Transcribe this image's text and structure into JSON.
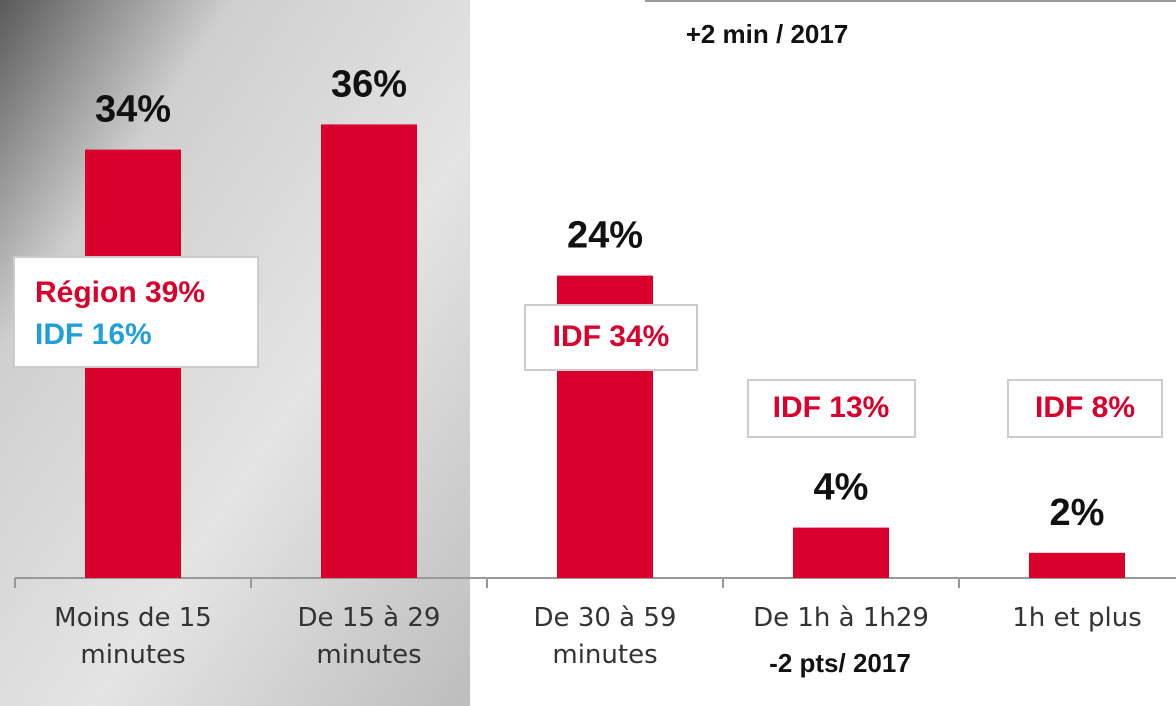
{
  "chart_data": {
    "type": "bar",
    "categories": [
      "Moins de 15 minutes",
      "De 15 à 29 minutes",
      "De 30 à 59 minutes",
      "De 1h à 1h29",
      "1h et plus"
    ],
    "values": [
      34,
      36,
      24,
      4,
      2
    ],
    "value_labels": [
      "34%",
      "36%",
      "24%",
      "4%",
      "2%"
    ],
    "color": "#d9002d",
    "annotations": [
      "+2 min / 2017",
      "-2 pts/ 2017",
      "Région 39%",
      "IDF 16%",
      "IDF 34%",
      "IDF 13%",
      "IDF 8%"
    ]
  }
}
